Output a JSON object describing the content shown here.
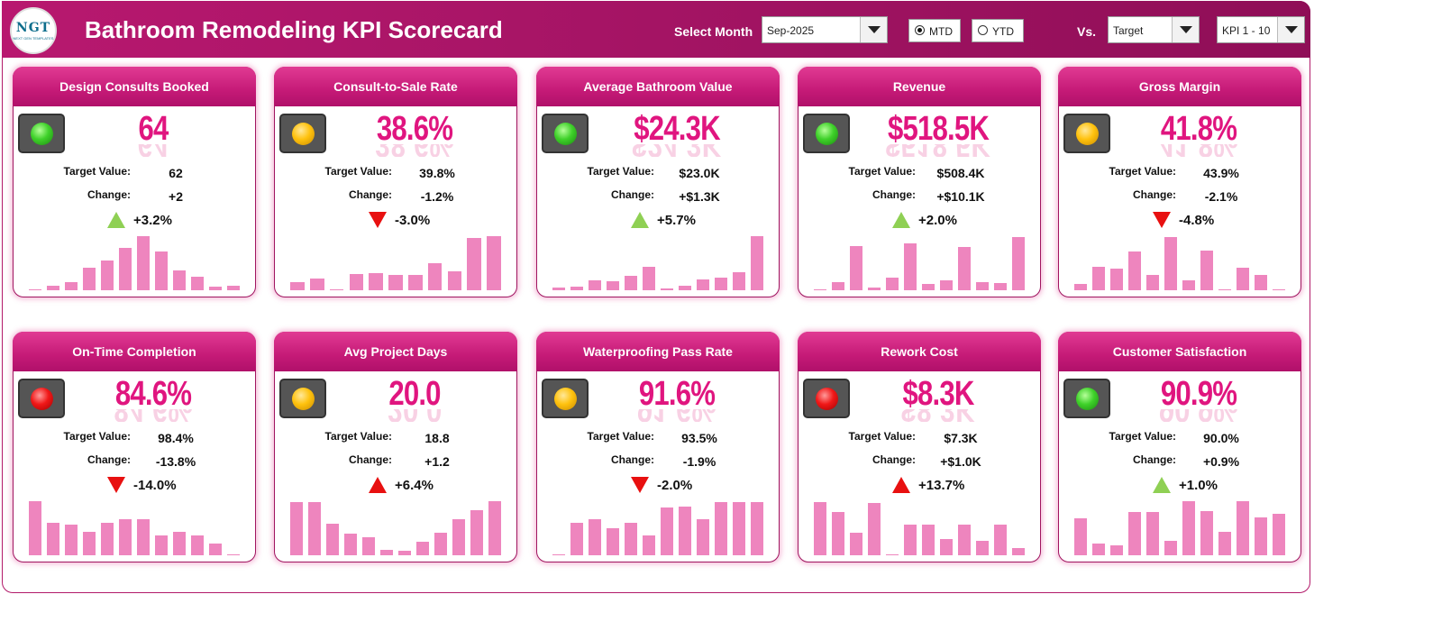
{
  "header": {
    "title": "Bathroom Remodeling KPI Scorecard",
    "logo_text": "NGT",
    "logo_sub": "NEXT GEN TEMPLATES",
    "select_month_label": "Select Month",
    "month_value": "Sep-2025",
    "mtd_label": "MTD",
    "ytd_label": "YTD",
    "mtd_selected": true,
    "vs_label": "Vs.",
    "vs_value": "Target",
    "kpi_range_value": "KPI 1 - 10"
  },
  "colors": {
    "accent": "#c51a77",
    "value": "#e0157f",
    "bar": "#ee85be",
    "up_good": "#8fd054",
    "down_bad": "#e81010"
  },
  "cards": [
    {
      "title": "Design Consults Booked",
      "status": "green",
      "value": "64",
      "target_label": "Target Value:",
      "target": "62",
      "change_label": "Change:",
      "change": "+2",
      "trend": "up",
      "trend_color": "green",
      "pct": "+3.2%",
      "bars": [
        0.02,
        0.08,
        0.15,
        0.42,
        0.55,
        0.78,
        1.0,
        0.72,
        0.36,
        0.25,
        0.07,
        0.08
      ]
    },
    {
      "title": "Consult-to-Sale Rate",
      "status": "amber",
      "value": "38.6%",
      "target_label": "Target Value:",
      "target": "39.8%",
      "change_label": "Change:",
      "change": "-1.2%",
      "trend": "down",
      "trend_color": "red",
      "pct": "-3.0%",
      "bars": [
        0.15,
        0.22,
        0.02,
        0.3,
        0.32,
        0.28,
        0.28,
        0.5,
        0.35,
        0.97,
        1.0
      ]
    },
    {
      "title": "Average Bathroom Value",
      "status": "green",
      "value": "$24.3K",
      "target_label": "Target Value:",
      "target": "$23.0K",
      "change_label": "Change:",
      "change": "+$1.3K",
      "trend": "up",
      "trend_color": "green",
      "pct": "+5.7%",
      "bars": [
        0.05,
        0.07,
        0.18,
        0.16,
        0.26,
        0.44,
        0.04,
        0.08,
        0.2,
        0.24,
        0.34,
        1.0
      ]
    },
    {
      "title": "Revenue",
      "status": "green",
      "value": "$518.5K",
      "target_label": "Target Value:",
      "target": "$508.4K",
      "change_label": "Change:",
      "change": "+$10.1K",
      "trend": "up",
      "trend_color": "green",
      "pct": "+2.0%",
      "bars": [
        0.02,
        0.15,
        0.82,
        0.05,
        0.23,
        0.86,
        0.12,
        0.18,
        0.8,
        0.15,
        0.14,
        0.98
      ]
    },
    {
      "title": "Gross Margin",
      "status": "amber",
      "value": "41.8%",
      "target_label": "Target Value:",
      "target": "43.9%",
      "change_label": "Change:",
      "change": "-2.1%",
      "trend": "down",
      "trend_color": "red",
      "pct": "-4.8%",
      "bars": [
        0.12,
        0.44,
        0.4,
        0.72,
        0.28,
        0.98,
        0.18,
        0.74,
        0.02,
        0.42,
        0.28,
        0.02
      ]
    },
    {
      "title": "On-Time Completion",
      "status": "red",
      "value": "84.6%",
      "target_label": "Target Value:",
      "target": "98.4%",
      "change_label": "Change:",
      "change": "-13.8%",
      "trend": "down",
      "trend_color": "red",
      "pct": "-14.0%",
      "bars": [
        1.0,
        0.6,
        0.56,
        0.44,
        0.6,
        0.66,
        0.66,
        0.36,
        0.44,
        0.36,
        0.22,
        0.02
      ]
    },
    {
      "title": "Avg Project Days",
      "status": "amber",
      "value": "20.0",
      "target_label": "Target Value:",
      "target": "18.8",
      "change_label": "Change:",
      "change": "+1.2",
      "trend": "up",
      "trend_color": "red",
      "pct": "+6.4%",
      "bars": [
        0.98,
        0.98,
        0.58,
        0.4,
        0.33,
        0.1,
        0.08,
        0.25,
        0.42,
        0.66,
        0.84,
        1.0
      ]
    },
    {
      "title": "Waterproofing Pass Rate",
      "status": "amber",
      "value": "91.6%",
      "target_label": "Target Value:",
      "target": "93.5%",
      "change_label": "Change:",
      "change": "-1.9%",
      "trend": "down",
      "trend_color": "red",
      "pct": "-2.0%",
      "bars": [
        0.02,
        0.6,
        0.66,
        0.5,
        0.6,
        0.36,
        0.88,
        0.9,
        0.66,
        0.98,
        0.98,
        0.98
      ]
    },
    {
      "title": "Rework Cost",
      "status": "red",
      "value": "$8.3K",
      "target_label": "Target Value:",
      "target": "$7.3K",
      "change_label": "Change:",
      "change": "+$1.0K",
      "trend": "up",
      "trend_color": "red",
      "pct": "+13.7%",
      "bars": [
        0.98,
        0.8,
        0.42,
        0.96,
        0.02,
        0.56,
        0.56,
        0.3,
        0.56,
        0.26,
        0.56,
        0.14
      ]
    },
    {
      "title": "Customer Satisfaction",
      "status": "green",
      "value": "90.9%",
      "target_label": "Target Value:",
      "target": "90.0%",
      "change_label": "Change:",
      "change": "+0.9%",
      "trend": "up",
      "trend_color": "green",
      "pct": "+1.0%",
      "bars": [
        0.68,
        0.22,
        0.18,
        0.8,
        0.8,
        0.26,
        1.0,
        0.82,
        0.44,
        1.0,
        0.7,
        0.76
      ]
    }
  ]
}
